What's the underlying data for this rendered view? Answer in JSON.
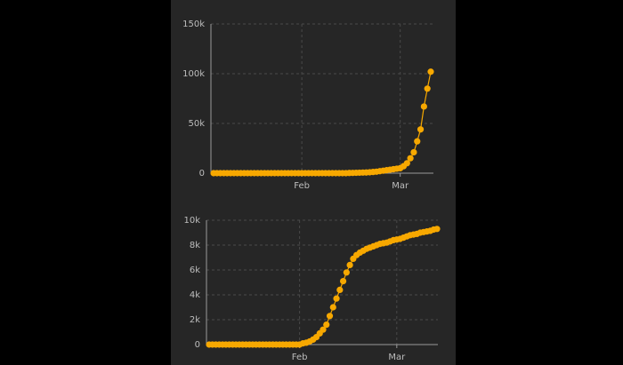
{
  "chart_data": [
    {
      "type": "line",
      "color": "#f7a800",
      "grid": true,
      "categories": [
        null,
        null,
        null,
        null,
        null,
        null,
        null,
        null,
        null,
        null,
        null,
        null,
        null,
        null,
        null,
        null,
        null,
        null,
        null,
        null,
        null,
        null,
        null,
        null,
        null,
        null,
        "Feb",
        null,
        null,
        null,
        null,
        null,
        null,
        null,
        null,
        null,
        null,
        null,
        null,
        null,
        null,
        null,
        null,
        null,
        null,
        null,
        null,
        null,
        null,
        null,
        null,
        null,
        null,
        null,
        null,
        "Mar",
        null,
        null,
        null,
        null,
        null,
        null,
        null,
        null,
        null
      ],
      "values": [
        0,
        0,
        0,
        0,
        0,
        0,
        0,
        0,
        0,
        0,
        0,
        0,
        0,
        0,
        0,
        0,
        0,
        0,
        0,
        0,
        0,
        0,
        0,
        0,
        0,
        0,
        0,
        0,
        0,
        0,
        0,
        0,
        0,
        0,
        0,
        0,
        0,
        0,
        0,
        0,
        200,
        300,
        400,
        500,
        600,
        700,
        900,
        1200,
        1500,
        2000,
        2500,
        3000,
        3500,
        4000,
        4500,
        5000,
        7000,
        10000,
        15000,
        21000,
        32000,
        44000,
        67000,
        85000,
        102000
      ],
      "ylim": [
        0,
        150000
      ],
      "yticks": [
        0,
        {
          "value": 50000,
          "label": "50k"
        },
        {
          "value": 100000,
          "label": "100k"
        },
        {
          "value": 150000,
          "label": "150k"
        }
      ]
    },
    {
      "type": "line",
      "color": "#f7a800",
      "grid": true,
      "categories": [
        null,
        null,
        null,
        null,
        null,
        null,
        null,
        null,
        null,
        null,
        null,
        null,
        null,
        null,
        null,
        null,
        null,
        null,
        null,
        null,
        null,
        null,
        null,
        null,
        null,
        null,
        null,
        "Feb",
        null,
        null,
        null,
        null,
        null,
        null,
        null,
        null,
        null,
        null,
        null,
        null,
        null,
        null,
        null,
        null,
        null,
        null,
        null,
        null,
        null,
        null,
        null,
        null,
        null,
        null,
        null,
        null,
        "Mar",
        null,
        null,
        null,
        null,
        null,
        null,
        null,
        null,
        null,
        null,
        null,
        null
      ],
      "values": [
        0,
        0,
        0,
        0,
        0,
        0,
        0,
        0,
        0,
        0,
        0,
        0,
        0,
        0,
        0,
        0,
        0,
        0,
        0,
        0,
        0,
        0,
        0,
        0,
        0,
        0,
        0,
        0,
        100,
        150,
        250,
        400,
        600,
        900,
        1200,
        1600,
        2300,
        3000,
        3700,
        4400,
        5100,
        5800,
        6400,
        6900,
        7200,
        7400,
        7550,
        7700,
        7800,
        7900,
        8000,
        8100,
        8150,
        8200,
        8300,
        8400,
        8450,
        8500,
        8600,
        8700,
        8800,
        8850,
        8900,
        9000,
        9050,
        9100,
        9150,
        9250,
        9300
      ],
      "ylim": [
        0,
        10000
      ],
      "yticks": [
        0,
        {
          "value": 2000,
          "label": "2k"
        },
        {
          "value": 4000,
          "label": "4k"
        },
        {
          "value": 6000,
          "label": "6k"
        },
        {
          "value": 8000,
          "label": "8k"
        },
        {
          "value": 10000,
          "label": "10k"
        }
      ]
    }
  ]
}
